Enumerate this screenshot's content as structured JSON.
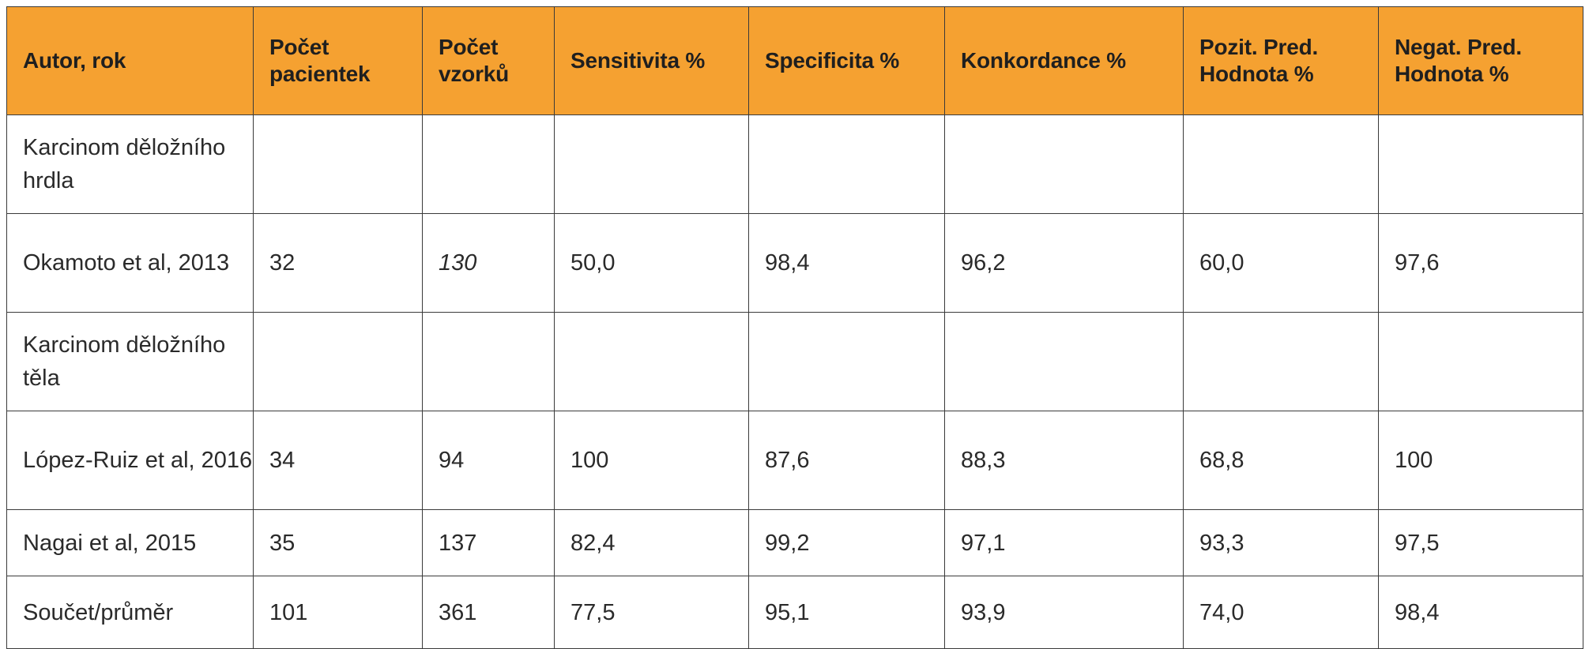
{
  "table": {
    "headers": [
      "Autor, rok",
      "Počet pacientek",
      "Počet vzorků",
      "Sensitivita %",
      "Specificita %",
      "Konkordance %",
      "Pozit. Pred. Hodnota %",
      "Negat. Pred. Hodnota %"
    ],
    "rows": [
      {
        "label": "Karcinom děložního hrdla",
        "values": [
          "",
          "",
          "",
          "",
          "",
          "",
          ""
        ]
      },
      {
        "label": "Okamoto et al, 2013",
        "values": [
          "32",
          "130",
          "50,0",
          "98,4",
          "96,2",
          "60,0",
          "97,6"
        ]
      },
      {
        "label": "Karcinom děložního těla",
        "values": [
          "",
          "",
          "",
          "",
          "",
          "",
          ""
        ]
      },
      {
        "label": "López-Ruiz et al, 2016",
        "values": [
          "34",
          "94",
          "100",
          "87,6",
          "88,3",
          "68,8",
          "100"
        ]
      },
      {
        "label": "Nagai et al, 2015",
        "values": [
          "35",
          "137",
          "82,4",
          "99,2",
          "97,1",
          "93,3",
          "97,5"
        ]
      },
      {
        "label": "Součet/průměr",
        "values": [
          "101",
          "361",
          "77,5",
          "95,1",
          "93,9",
          "74,0",
          "98,4"
        ]
      }
    ]
  }
}
